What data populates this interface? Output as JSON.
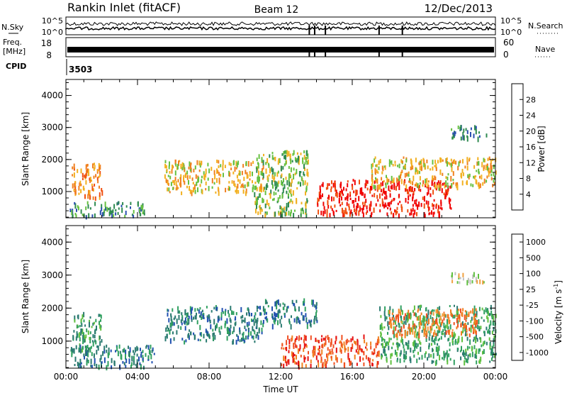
{
  "header": {
    "station": "Rankin Inlet (fitACF)",
    "beam": "Beam 12",
    "date": "12/Dec/2013"
  },
  "top_panels": {
    "nsky_label": "N.Sky",
    "nsky_ticks": [
      "10^5",
      "10^0"
    ],
    "nsearch_label": "N.Search",
    "nsearch_ticks": [
      "10^5",
      "10^0"
    ],
    "freq_label_1": "Freq.",
    "freq_label_2": "[MHz]",
    "freq_ticks": [
      "18",
      "8"
    ],
    "nave_label": "Nave",
    "nave_ticks": [
      "60",
      "0"
    ],
    "cpid_label": "CPID",
    "cpid_value": "3503"
  },
  "colors": {
    "power": [
      "#0a1fe6",
      "#2a4fb0",
      "#2e8a50",
      "#66c040",
      "#f2b020",
      "#f08020",
      "#f05010",
      "#f00000"
    ],
    "velocity": [
      "#e61010",
      "#f05020",
      "#f08020",
      "#f0a040",
      "#c0c0c0",
      "#60c040",
      "#30a060",
      "#2a7a70",
      "#2050b0"
    ]
  },
  "chart_data": [
    {
      "type": "heatmap",
      "title": "",
      "ylabel": "Slant Range [km]",
      "xlabel": "",
      "x_ticks": [
        "00:00",
        "04:00",
        "08:00",
        "12:00",
        "16:00",
        "20:00",
        "00:00"
      ],
      "y_ticks": [
        1000,
        2000,
        3000,
        4000
      ],
      "xlim_hours": [
        0,
        24
      ],
      "ylim_km": [
        180,
        4500
      ],
      "colorbar": {
        "label": "Power [dB]",
        "ticks": [
          "4",
          "8",
          "12",
          "16",
          "20",
          "24",
          "28"
        ],
        "range": [
          0,
          30
        ]
      },
      "regions": [
        {
          "name": "near-range-early",
          "x": [
            0.3,
            2.0
          ],
          "y": [
            800,
            1900
          ],
          "value": 22
        },
        {
          "name": "near-range-early-low",
          "x": [
            0.2,
            4.5
          ],
          "y": [
            250,
            700
          ],
          "value": 10
        },
        {
          "name": "morning-band",
          "x": [
            5.5,
            11.0
          ],
          "y": [
            1000,
            2000
          ],
          "value": 18
        },
        {
          "name": "noon-arc",
          "x": [
            10.5,
            13.5
          ],
          "y": [
            300,
            2300
          ],
          "value": 14
        },
        {
          "name": "afternoon-strong",
          "x": [
            14.0,
            21.5
          ],
          "y": [
            300,
            1400
          ],
          "value": 28
        },
        {
          "name": "evening-band",
          "x": [
            17.0,
            24.0
          ],
          "y": [
            1200,
            2100
          ],
          "value": 16
        },
        {
          "name": "far-range-evening",
          "x": [
            21.5,
            23.5
          ],
          "y": [
            2700,
            3100
          ],
          "value": 8
        }
      ]
    },
    {
      "type": "heatmap",
      "title": "",
      "ylabel": "Slant Range [km]",
      "xlabel": "Time UT",
      "x_ticks": [
        "00:00",
        "04:00",
        "08:00",
        "12:00",
        "16:00",
        "20:00",
        "00:00"
      ],
      "y_ticks": [
        1000,
        2000,
        3000,
        4000
      ],
      "xlim_hours": [
        0,
        24
      ],
      "ylim_km": [
        180,
        4500
      ],
      "colorbar": {
        "label": "Velocity [m s",
        "label_sup": "-1",
        "label_end": "]",
        "ticks": [
          "1000",
          "500",
          "100",
          "25",
          "-25",
          "-100",
          "-500",
          "-1000"
        ]
      },
      "regions": [
        {
          "name": "early",
          "x": [
            0.3,
            2.0
          ],
          "y": [
            800,
            1900
          ],
          "value": 100
        },
        {
          "name": "early-low",
          "x": [
            0.2,
            5.0
          ],
          "y": [
            250,
            900
          ],
          "value": 300
        },
        {
          "name": "morning-band",
          "x": [
            5.5,
            11.0
          ],
          "y": [
            1000,
            2100
          ],
          "value": 400
        },
        {
          "name": "noon",
          "x": [
            11.0,
            14.0
          ],
          "y": [
            1500,
            2300
          ],
          "value": 200
        },
        {
          "name": "afternoon-negative",
          "x": [
            12.0,
            17.5
          ],
          "y": [
            300,
            1200
          ],
          "value": -500
        },
        {
          "name": "evening-green",
          "x": [
            17.5,
            24.0
          ],
          "y": [
            400,
            2100
          ],
          "value": 100
        },
        {
          "name": "evening-orange",
          "x": [
            18.0,
            23.0
          ],
          "y": [
            1200,
            2000
          ],
          "value": -100
        },
        {
          "name": "far-range-grey",
          "x": [
            21.5,
            23.5
          ],
          "y": [
            2800,
            3100
          ],
          "value": 0
        }
      ]
    }
  ]
}
